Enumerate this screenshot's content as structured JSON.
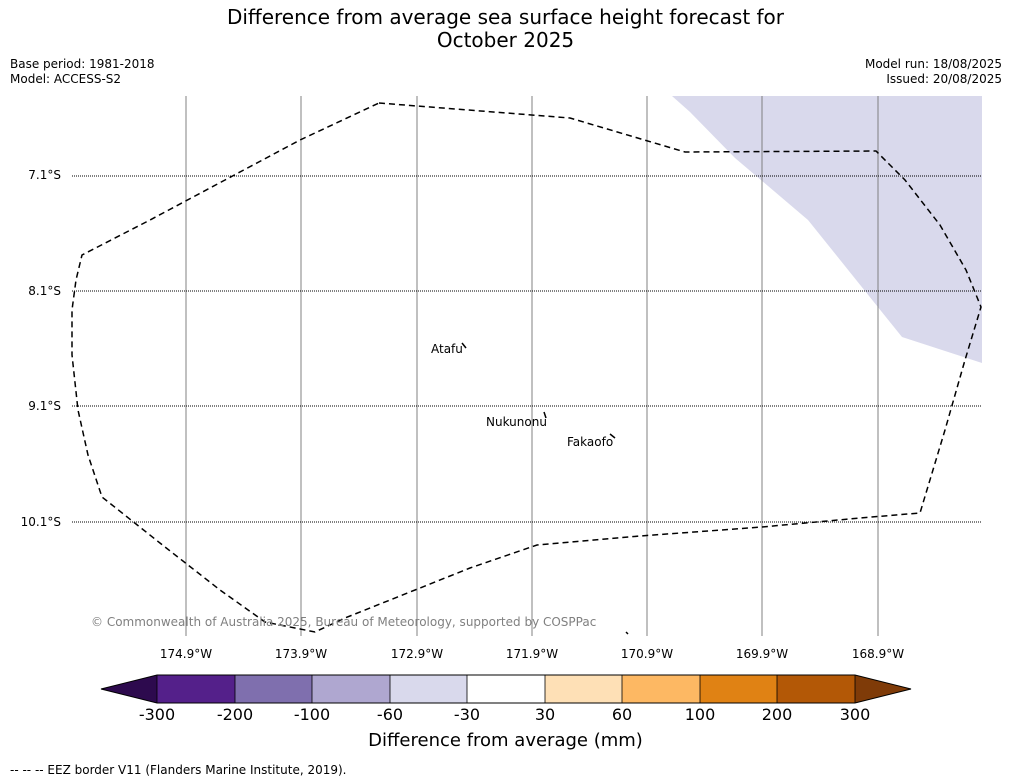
{
  "title_line1": "Difference from average sea surface height forecast for",
  "title_line2": "October 2025",
  "base_period": "Base period: 1981-2018",
  "model": "Model: ACCESS-S2",
  "model_run": "Model run: 18/08/2025",
  "issued": "Issued: 20/08/2025",
  "latitudes": [
    "7.1°S",
    "8.1°S",
    "9.1°S",
    "10.1°S"
  ],
  "longitudes": [
    "174.9°W",
    "173.9°W",
    "172.9°W",
    "171.9°W",
    "170.9°W",
    "169.9°W",
    "168.9°W"
  ],
  "places": {
    "atafu": "Atafu",
    "nukunonu": "Nukunonu",
    "fakaofo": "Fakaofo"
  },
  "copyright": "© Commonwealth of Australia 2025, Bureau of Meteorology, supported by COSPPac",
  "colorbar": {
    "label": "Difference from average (mm)",
    "ticks": [
      "-300",
      "-200",
      "-100",
      "-60",
      "-30",
      "30",
      "60",
      "100",
      "200",
      "300"
    ],
    "colors": [
      "#2d0a4e",
      "#54208a",
      "#7f6fae",
      "#afa7d0",
      "#d9d9ec",
      "#ffffff",
      "#fee0b6",
      "#fdb863",
      "#e08214",
      "#b35806",
      "#7f3b08"
    ]
  },
  "footer": "--  --  -- EEZ border V11 (Flanders Marine Institute, 2019)."
}
